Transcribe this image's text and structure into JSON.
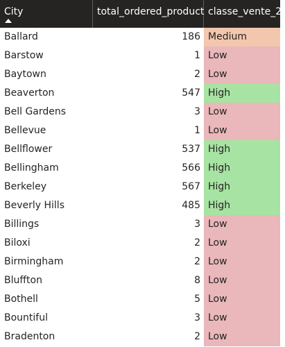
{
  "columns": {
    "city": "City",
    "total": "total_ordered_product",
    "classe": "classe_vente_2"
  },
  "sort": {
    "column": "City",
    "direction": "ascending",
    "icon": "sort-ascending-icon"
  },
  "level_colors": {
    "High": "#a7e3a2",
    "Low": "#eab7ba",
    "Medium": "#f2c7ae"
  },
  "rows": [
    {
      "city": "Ballard",
      "total": "186",
      "classe": "Medium"
    },
    {
      "city": "Barstow",
      "total": "1",
      "classe": "Low"
    },
    {
      "city": "Baytown",
      "total": "2",
      "classe": "Low"
    },
    {
      "city": "Beaverton",
      "total": "547",
      "classe": "High"
    },
    {
      "city": "Bell Gardens",
      "total": "3",
      "classe": "Low"
    },
    {
      "city": "Bellevue",
      "total": "1",
      "classe": "Low"
    },
    {
      "city": "Bellflower",
      "total": "537",
      "classe": "High"
    },
    {
      "city": "Bellingham",
      "total": "566",
      "classe": "High"
    },
    {
      "city": "Berkeley",
      "total": "567",
      "classe": "High"
    },
    {
      "city": "Beverly Hills",
      "total": "485",
      "classe": "High"
    },
    {
      "city": "Billings",
      "total": "3",
      "classe": "Low"
    },
    {
      "city": "Biloxi",
      "total": "2",
      "classe": "Low"
    },
    {
      "city": "Birmingham",
      "total": "2",
      "classe": "Low"
    },
    {
      "city": "Bluffton",
      "total": "8",
      "classe": "Low"
    },
    {
      "city": "Bothell",
      "total": "5",
      "classe": "Low"
    },
    {
      "city": "Bountiful",
      "total": "3",
      "classe": "Low"
    },
    {
      "city": "Bradenton",
      "total": "2",
      "classe": "Low"
    }
  ]
}
